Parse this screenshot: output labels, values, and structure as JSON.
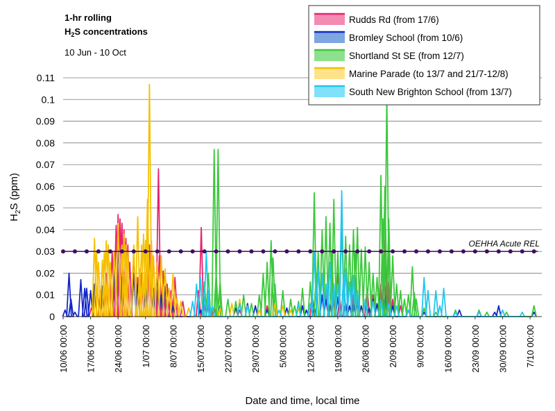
{
  "chart_data": {
    "type": "line",
    "title_line1": "1-hr rolling",
    "title_line2_prefix": "H",
    "title_line2_sub": "2",
    "title_line2_suffix": "S concentrations",
    "subtitle": "10 Jun - 10 Oct",
    "ylabel_prefix": "H",
    "ylabel_sub": "2",
    "ylabel_suffix": "S (ppm)",
    "xlabel": "Date and time, local time",
    "ylim": [
      0,
      0.11
    ],
    "yticks": [
      "0",
      "0.01",
      "0.02",
      "0.03",
      "0.04",
      "0.05",
      "0.06",
      "0.07",
      "0.08",
      "0.09",
      "0.1",
      "0.11"
    ],
    "xlim_days": [
      0,
      122
    ],
    "xticks": [
      "10/06 00:00",
      "17/06 00:00",
      "24/06 00:00",
      "1/07 00:00",
      "8/07 00:00",
      "15/07 00:00",
      "22/07 00:00",
      "29/07 00:00",
      "5/08 00:00",
      "12/08 00:00",
      "19/08 00:00",
      "26/08 00:00",
      "2/09 00:00",
      "9/09 00:00",
      "16/09 00:00",
      "23/09 00:00",
      "30/09 00:00",
      "7/10 00:00"
    ],
    "grid": true,
    "legend_position": "top-right",
    "reference_line": {
      "label": "OEHHA Acute REL",
      "value": 0.03,
      "color": "#3d1060"
    },
    "series": [
      {
        "name": "Rudds Rd (from 17/6)",
        "color": "#e8236f",
        "fill": "#f48bb2",
        "peaks": [
          [
            7.2,
            0.004
          ],
          [
            9.5,
            0.012
          ],
          [
            11,
            0.02
          ],
          [
            12.5,
            0.03
          ],
          [
            13.5,
            0.042
          ],
          [
            14,
            0.047
          ],
          [
            14.5,
            0.045
          ],
          [
            15,
            0.043
          ],
          [
            15.5,
            0.04
          ],
          [
            16,
            0.036
          ],
          [
            16.5,
            0.033
          ],
          [
            17,
            0.025
          ],
          [
            18,
            0.03
          ],
          [
            19,
            0.018
          ],
          [
            20,
            0.02
          ],
          [
            21,
            0.016
          ],
          [
            22,
            0.033
          ],
          [
            23,
            0.028
          ],
          [
            24.3,
            0.068
          ],
          [
            24.5,
            0.028
          ],
          [
            25.5,
            0.021
          ],
          [
            26.5,
            0.015
          ],
          [
            27.5,
            0.012
          ],
          [
            28.5,
            0.018
          ],
          [
            30.5,
            0.007
          ],
          [
            34.5,
            0.012
          ],
          [
            35.2,
            0.041
          ],
          [
            35.8,
            0.009
          ],
          [
            37,
            0.006
          ],
          [
            38.5,
            0.004
          ],
          [
            45,
            0.003
          ],
          [
            52,
            0.005
          ],
          [
            63.5,
            0.01
          ],
          [
            67,
            0.012
          ],
          [
            69,
            0.01
          ],
          [
            70,
            0.02
          ],
          [
            70.5,
            0.008
          ],
          [
            74,
            0.01
          ],
          [
            77.5,
            0.013
          ],
          [
            79,
            0.01
          ],
          [
            81,
            0.015
          ],
          [
            82,
            0.035
          ],
          [
            82.5,
            0.02
          ],
          [
            83,
            0.016
          ],
          [
            84,
            0.008
          ],
          [
            86,
            0.005
          ],
          [
            88,
            0.003
          ]
        ]
      },
      {
        "name": "Bromley School (from 10/6)",
        "color": "#1428c8",
        "fill": "#7ea6e0",
        "peaks": [
          [
            0.5,
            0.003
          ],
          [
            1.5,
            0.02
          ],
          [
            2,
            0.008
          ],
          [
            3,
            0.002
          ],
          [
            4.5,
            0.017
          ],
          [
            5.5,
            0.013
          ],
          [
            6,
            0.013
          ],
          [
            7,
            0.012
          ],
          [
            8,
            0.015
          ],
          [
            10,
            0.014
          ],
          [
            13,
            0.021
          ],
          [
            14,
            0.035
          ],
          [
            15,
            0.018
          ],
          [
            18,
            0.02
          ],
          [
            19,
            0.015
          ],
          [
            21,
            0.016
          ],
          [
            23,
            0.013
          ],
          [
            24,
            0.02
          ],
          [
            25,
            0.01
          ],
          [
            26,
            0.014
          ],
          [
            28,
            0.005
          ],
          [
            35,
            0.003
          ],
          [
            40,
            0.005
          ],
          [
            44,
            0.004
          ],
          [
            47,
            0.006
          ],
          [
            49,
            0.005
          ],
          [
            52,
            0.003
          ],
          [
            57,
            0.004
          ],
          [
            61,
            0.005
          ],
          [
            62,
            0.003
          ],
          [
            64,
            0.004
          ],
          [
            66,
            0.01
          ],
          [
            67,
            0.008
          ],
          [
            68,
            0.006
          ],
          [
            70,
            0.009
          ],
          [
            72,
            0.006
          ],
          [
            73,
            0.005
          ],
          [
            74,
            0.006
          ],
          [
            75,
            0.009
          ],
          [
            76,
            0.005
          ],
          [
            78,
            0.004
          ],
          [
            79,
            0.008
          ],
          [
            80,
            0.006
          ],
          [
            82,
            0.01
          ],
          [
            84,
            0.005
          ],
          [
            88,
            0.003
          ],
          [
            92,
            0.002
          ],
          [
            101,
            0.003
          ],
          [
            110,
            0.002
          ],
          [
            111,
            0.005
          ],
          [
            120,
            0.002
          ]
        ]
      },
      {
        "name": "Shortland St SE (from 12/7)",
        "color": "#3cc83c",
        "fill": "#8ee08e",
        "peaks": [
          [
            36,
            0.016
          ],
          [
            37,
            0.02
          ],
          [
            38.5,
            0.077
          ],
          [
            39,
            0.02
          ],
          [
            39.5,
            0.077
          ],
          [
            40,
            0.016
          ],
          [
            42,
            0.008
          ],
          [
            44,
            0.007
          ],
          [
            46,
            0.01
          ],
          [
            48,
            0.006
          ],
          [
            50,
            0.01
          ],
          [
            51,
            0.02
          ],
          [
            52,
            0.025
          ],
          [
            53,
            0.035
          ],
          [
            53.5,
            0.027
          ],
          [
            54,
            0.015
          ],
          [
            56,
            0.012
          ],
          [
            58,
            0.008
          ],
          [
            59,
            0.005
          ],
          [
            60,
            0.007
          ],
          [
            61,
            0.013
          ],
          [
            63,
            0.016
          ],
          [
            64,
            0.057
          ],
          [
            64.5,
            0.02
          ],
          [
            65,
            0.03
          ],
          [
            66,
            0.04
          ],
          [
            67,
            0.046
          ],
          [
            68,
            0.043
          ],
          [
            68.5,
            0.03
          ],
          [
            69,
            0.054
          ],
          [
            70,
            0.03
          ],
          [
            71,
            0.043
          ],
          [
            72,
            0.037
          ],
          [
            73,
            0.033
          ],
          [
            74,
            0.04
          ],
          [
            74.5,
            0.03
          ],
          [
            75,
            0.041
          ],
          [
            76,
            0.031
          ],
          [
            77,
            0.032
          ],
          [
            78,
            0.025
          ],
          [
            79,
            0.02
          ],
          [
            80,
            0.018
          ],
          [
            81,
            0.065
          ],
          [
            81.5,
            0.045
          ],
          [
            82,
            0.06
          ],
          [
            82.5,
            0.102
          ],
          [
            83,
            0.045
          ],
          [
            84,
            0.028
          ],
          [
            85,
            0.015
          ],
          [
            86,
            0.012
          ],
          [
            87,
            0.008
          ],
          [
            88,
            0.01
          ],
          [
            89,
            0.023
          ],
          [
            89.5,
            0.011
          ],
          [
            90,
            0.008
          ],
          [
            92,
            0.004
          ],
          [
            95,
            0.002
          ],
          [
            100,
            0.003
          ],
          [
            106,
            0.003
          ],
          [
            108,
            0.002
          ],
          [
            113,
            0.002
          ],
          [
            120,
            0.005
          ]
        ]
      },
      {
        "name": "Marine Parade (to 13/7 and 21/7-12/8)",
        "color": "#f5c000",
        "fill": "#ffe38a",
        "peaks": [
          [
            8,
            0.036
          ],
          [
            8.5,
            0.03
          ],
          [
            9,
            0.025
          ],
          [
            10,
            0.026
          ],
          [
            10.5,
            0.03
          ],
          [
            11,
            0.035
          ],
          [
            11.5,
            0.033
          ],
          [
            12,
            0.025
          ],
          [
            13,
            0.03
          ],
          [
            14,
            0.043
          ],
          [
            15,
            0.033
          ],
          [
            15.5,
            0.038
          ],
          [
            16,
            0.033
          ],
          [
            16.5,
            0.03
          ],
          [
            18,
            0.033
          ],
          [
            19,
            0.046
          ],
          [
            19.5,
            0.022
          ],
          [
            20,
            0.033
          ],
          [
            20.5,
            0.038
          ],
          [
            21,
            0.035
          ],
          [
            21.5,
            0.054
          ],
          [
            22,
            0.107
          ],
          [
            22.5,
            0.035
          ],
          [
            23,
            0.028
          ],
          [
            24,
            0.025
          ],
          [
            25,
            0.028
          ],
          [
            26,
            0.022
          ],
          [
            27,
            0.013
          ],
          [
            28,
            0.02
          ],
          [
            29,
            0.009
          ],
          [
            30,
            0.007
          ],
          [
            32,
            0.004
          ],
          [
            36,
            0.003
          ],
          [
            40,
            0.004
          ],
          [
            43,
            0.006
          ],
          [
            45,
            0.008
          ],
          [
            47,
            0.005
          ],
          [
            50,
            0.003
          ],
          [
            54,
            0.006
          ],
          [
            56,
            0.005
          ],
          [
            58,
            0.003
          ],
          [
            60,
            0.004
          ]
        ]
      },
      {
        "name": "South New Brighton School (from 13/7)",
        "color": "#22c6f0",
        "fill": "#7fe2fa",
        "peaks": [
          [
            33,
            0.007
          ],
          [
            34,
            0.015
          ],
          [
            35,
            0.018
          ],
          [
            36.5,
            0.03
          ],
          [
            37,
            0.012
          ],
          [
            38,
            0.005
          ],
          [
            45,
            0.006
          ],
          [
            47,
            0.005
          ],
          [
            55,
            0.003
          ],
          [
            60,
            0.006
          ],
          [
            63,
            0.006
          ],
          [
            64,
            0.03
          ],
          [
            65,
            0.022
          ],
          [
            66,
            0.02
          ],
          [
            67,
            0.015
          ],
          [
            68,
            0.025
          ],
          [
            69,
            0.015
          ],
          [
            70,
            0.015
          ],
          [
            71,
            0.058
          ],
          [
            71.5,
            0.02
          ],
          [
            72,
            0.022
          ],
          [
            73,
            0.016
          ],
          [
            74,
            0.019
          ],
          [
            75,
            0.012
          ],
          [
            77,
            0.008
          ],
          [
            79,
            0.007
          ],
          [
            81,
            0.008
          ],
          [
            83,
            0.006
          ],
          [
            85,
            0.005
          ],
          [
            88,
            0.003
          ],
          [
            92,
            0.018
          ],
          [
            93,
            0.012
          ],
          [
            95,
            0.012
          ],
          [
            96,
            0.005
          ],
          [
            97,
            0.013
          ],
          [
            100,
            0.002
          ],
          [
            106,
            0.002
          ],
          [
            112,
            0.003
          ],
          [
            117,
            0.002
          ]
        ]
      }
    ]
  }
}
